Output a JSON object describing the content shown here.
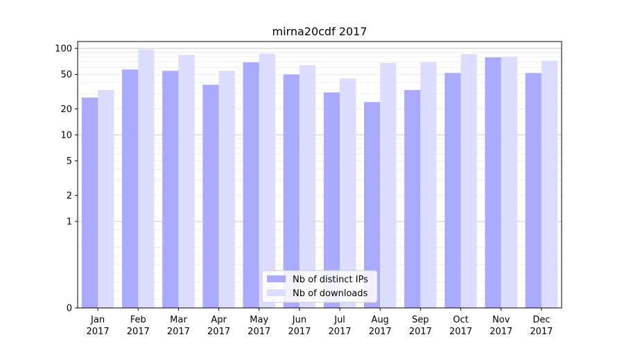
{
  "chart_data": {
    "type": "bar",
    "title": "mirna20cdf 2017",
    "categories": [
      [
        "Jan",
        "2017"
      ],
      [
        "Feb",
        "2017"
      ],
      [
        "Mar",
        "2017"
      ],
      [
        "Apr",
        "2017"
      ],
      [
        "May",
        "2017"
      ],
      [
        "Jun",
        "2017"
      ],
      [
        "Jul",
        "2017"
      ],
      [
        "Aug",
        "2017"
      ],
      [
        "Sep",
        "2017"
      ],
      [
        "Oct",
        "2017"
      ],
      [
        "Nov",
        "2017"
      ],
      [
        "Dec",
        "2017"
      ]
    ],
    "series": [
      {
        "name": "Nb of distinct IPs",
        "color": "#aaaaff",
        "values": [
          27,
          57,
          55,
          38,
          69,
          50,
          31,
          24,
          33,
          52,
          79,
          52
        ]
      },
      {
        "name": "Nb of downloads",
        "color": "#ddddff",
        "values": [
          33,
          97,
          84,
          55,
          87,
          64,
          45,
          68,
          69,
          86,
          80,
          72
        ]
      }
    ],
    "yscale": "symlog",
    "ylim": [
      0,
      120
    ],
    "yticks": [
      0,
      1,
      2,
      5,
      10,
      20,
      50,
      100
    ],
    "ytick_labels": [
      "0",
      "1",
      "2",
      "5",
      "10",
      "20",
      "50",
      "100"
    ],
    "grid": true,
    "legend_position": "lower-center"
  }
}
